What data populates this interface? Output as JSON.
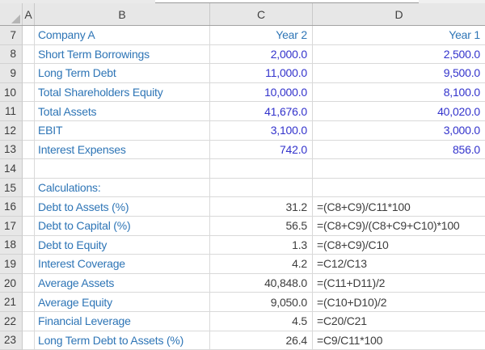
{
  "sheet": {
    "column_headers": [
      "A",
      "B",
      "C",
      "D"
    ],
    "rows": [
      {
        "n": "7",
        "b": "Company A",
        "c": "Year 2",
        "d": "Year 1",
        "kind": "years"
      },
      {
        "n": "8",
        "b": "Short Term Borrowings",
        "c": "2,000.0",
        "d": "2,500.0",
        "kind": "input"
      },
      {
        "n": "9",
        "b": "Long Term Debt",
        "c": "11,000.0",
        "d": "9,500.0",
        "kind": "input"
      },
      {
        "n": "10",
        "b": "Total Shareholders Equity",
        "c": "10,000.0",
        "d": "8,100.0",
        "kind": "input"
      },
      {
        "n": "11",
        "b": "Total Assets",
        "c": "41,676.0",
        "d": "40,020.0",
        "kind": "input"
      },
      {
        "n": "12",
        "b": "EBIT",
        "c": "3,100.0",
        "d": "3,000.0",
        "kind": "input"
      },
      {
        "n": "13",
        "b": "Interest Expenses",
        "c": "742.0",
        "d": "856.0",
        "kind": "input"
      },
      {
        "n": "14",
        "b": "",
        "c": "",
        "d": "",
        "kind": "blank"
      },
      {
        "n": "15",
        "b": "Calculations:",
        "c": "",
        "d": "",
        "kind": "section"
      },
      {
        "n": "16",
        "b": "Debt to Assets (%)",
        "c": "31.2",
        "d": "=(C8+C9)/C11*100",
        "kind": "calc"
      },
      {
        "n": "17",
        "b": "Debt to Capital (%)",
        "c": "56.5",
        "d": "=(C8+C9)/(C8+C9+C10)*100",
        "kind": "calc"
      },
      {
        "n": "18",
        "b": "Debt to Equity",
        "c": "1.3",
        "d": "=(C8+C9)/C10",
        "kind": "calc"
      },
      {
        "n": "19",
        "b": "Interest Coverage",
        "c": "4.2",
        "d": "=C12/C13",
        "kind": "calc"
      },
      {
        "n": "20",
        "b": "Average Assets",
        "c": "40,848.0",
        "d": "=(C11+D11)/2",
        "kind": "calc"
      },
      {
        "n": "21",
        "b": "Average Equity",
        "c": "9,050.0",
        "d": "=(C10+D10)/2",
        "kind": "calc"
      },
      {
        "n": "22",
        "b": "Financial Leverage",
        "c": "4.5",
        "d": "=C20/C21",
        "kind": "calc"
      },
      {
        "n": "23",
        "b": "Long Term Debt to Assets (%)",
        "c": "26.4",
        "d": "=C9/C11*100",
        "kind": "calc"
      }
    ],
    "colors": {
      "label_blue": "#2e75b6",
      "input_blue": "#3333cc",
      "calc_text": "#3d3d3d",
      "header_bg": "#e7e7e7",
      "gridline": "#d9d9d9"
    }
  }
}
